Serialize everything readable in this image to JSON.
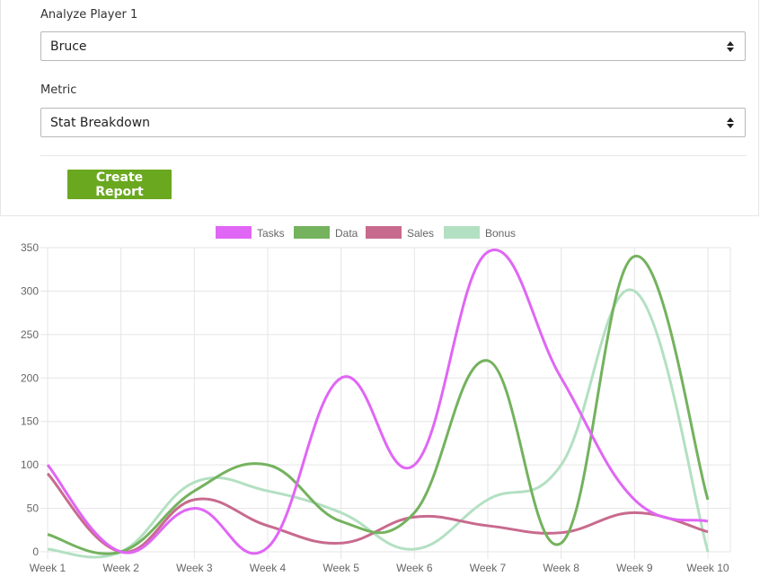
{
  "form": {
    "player_label": "Analyze Player 1",
    "player_value": "Bruce",
    "metric_label": "Metric",
    "metric_value": "Stat Breakdown",
    "button_label": "Create Report"
  },
  "colors": {
    "button": "#6aa820",
    "Tasks": "#e066f5",
    "Data": "#74b25e",
    "Sales": "#c86a8e",
    "Bonus": "#b3e0c2"
  },
  "chart_data": {
    "type": "line",
    "x": [
      "Week 1",
      "Week 2",
      "Week 3",
      "Week 4",
      "Week 5",
      "Week 6",
      "Week 7",
      "Week 8",
      "Week 9",
      "Week 10"
    ],
    "ylim": [
      0,
      350
    ],
    "yticks": [
      0,
      50,
      100,
      150,
      200,
      250,
      300,
      350
    ],
    "grid": true,
    "legend_position": "top",
    "smooth": true,
    "series": [
      {
        "name": "Tasks",
        "values": [
          100,
          0,
          50,
          5,
          200,
          100,
          345,
          200,
          60,
          35
        ]
      },
      {
        "name": "Data",
        "values": [
          20,
          0,
          70,
          100,
          35,
          45,
          220,
          10,
          340,
          60
        ]
      },
      {
        "name": "Sales",
        "values": [
          90,
          0,
          60,
          30,
          10,
          40,
          30,
          22,
          45,
          23
        ]
      },
      {
        "name": "Bonus",
        "values": [
          3,
          0,
          80,
          70,
          45,
          3,
          60,
          100,
          300,
          0
        ]
      }
    ]
  }
}
